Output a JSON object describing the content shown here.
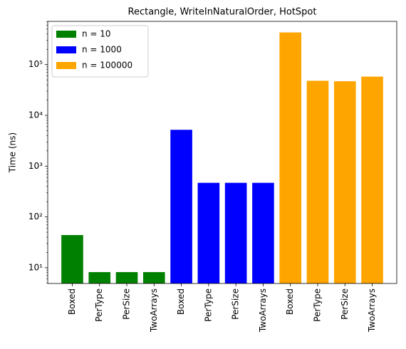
{
  "chart_data": {
    "type": "bar",
    "title": "Rectangle, WriteInNaturalOrder, HotSpot",
    "y_label": "Time (ns)",
    "categories": [
      "Boxed",
      "PerType",
      "PerSize",
      "TwoArrays",
      "Boxed",
      "PerType",
      "PerSize",
      "TwoArrays",
      "Boxed",
      "PerType",
      "PerSize",
      "TwoArrays"
    ],
    "series": [
      {
        "name": "n = 10",
        "color": "#008000",
        "values": [
          44,
          8.2,
          8.2,
          8.2,
          null,
          null,
          null,
          null,
          null,
          null,
          null,
          null
        ]
      },
      {
        "name": "n = 1000",
        "color": "#0000ff",
        "values": [
          null,
          null,
          null,
          null,
          5200,
          470,
          470,
          470,
          null,
          null,
          null,
          null
        ]
      },
      {
        "name": "n = 100000",
        "color": "#ffa500",
        "values": [
          null,
          null,
          null,
          null,
          null,
          null,
          null,
          null,
          430000,
          48000,
          47000,
          58000
        ]
      }
    ],
    "ylim": [
      4.9,
      710000
    ],
    "log_y": true,
    "yticks": [
      {
        "value": 10,
        "label": "10¹"
      },
      {
        "value": 100,
        "label": "10²"
      },
      {
        "value": 1000,
        "label": "10³"
      },
      {
        "value": 10000,
        "label": "10⁴"
      },
      {
        "value": 100000,
        "label": "10⁵"
      }
    ],
    "legend": "upper left"
  }
}
